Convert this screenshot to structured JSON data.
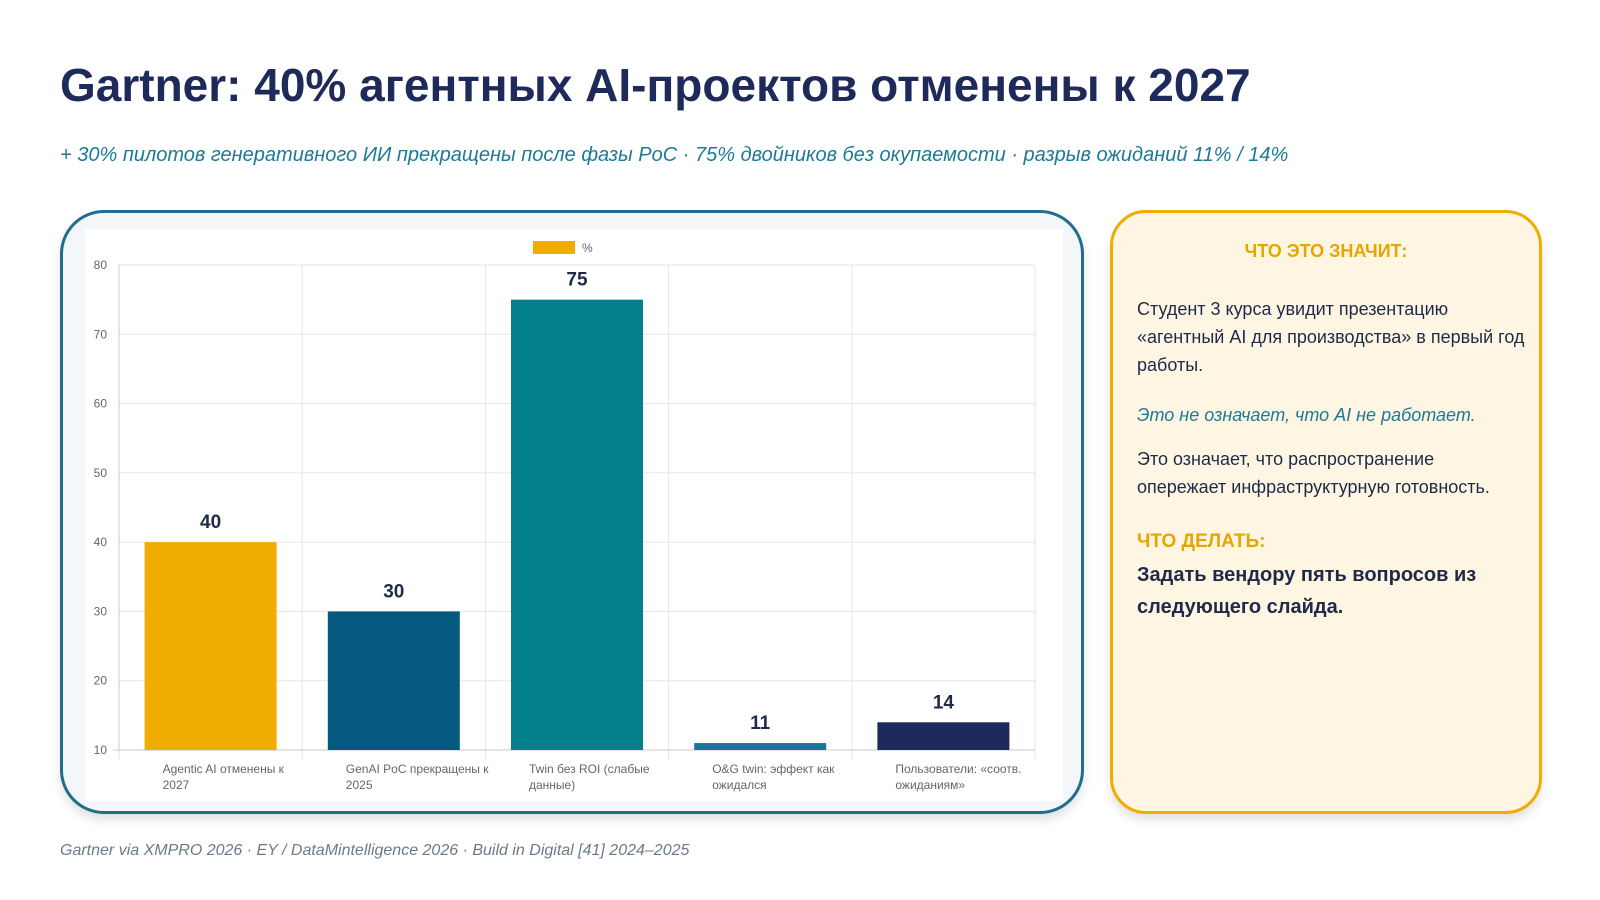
{
  "slide": {
    "title": "Gartner: 40% агентных AI-проектов отменены к 2027",
    "subtitle": "+ 30% пилотов генеративного ИИ прекращены после фазы PoC · 75% двойников без окупаемости · разрыв ожиданий 11% / 14%",
    "footer": "Gartner via XMPRO 2026 · EY / DataMintelligence 2026 · Build in Digital [41] 2024–2025"
  },
  "info_card": {
    "heading": "ЧТО ЭТО ЗНАЧИТ:",
    "paragraph1": "Студент 3 курса увидит презентацию «агентный AI для производства» в первый год работы.",
    "paragraph2": "Это не означает, что AI не работает.",
    "paragraph3": "Это означает, что распространение опережает инфраструктурную готовность.",
    "todo_heading": "ЧТО ДЕЛАТЬ:",
    "todo_text": "Задать вендору пять вопросов из следующего слайда."
  },
  "chart_data": {
    "type": "bar",
    "categories": [
      "Agentic AI отменены к 2027",
      "GenAI PoC прекращены к 2025",
      "Twin без ROI (слабые данные)",
      "O&G twin: эффект как ожидался",
      "Пользователи: «соотв. ожиданиям»"
    ],
    "series": [
      {
        "name": "%",
        "values": [
          40,
          30,
          75,
          11,
          14
        ]
      }
    ],
    "colors": [
      "#f0ad00",
      "#06597e",
      "#04808c",
      "#1b7596",
      "#1e2a5e"
    ],
    "legend_color": "#f0ad00",
    "ylim": [
      10,
      80
    ],
    "yticks": [
      10,
      20,
      30,
      40,
      50,
      60,
      70,
      80
    ],
    "grid": true,
    "legend_position": "top-center"
  }
}
